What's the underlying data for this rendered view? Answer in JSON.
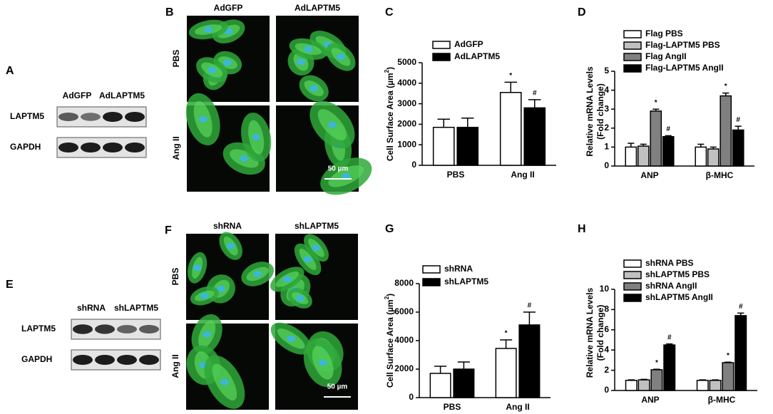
{
  "blot_a": {
    "letter": "A",
    "lanes": [
      "AdGFP",
      "AdLAPTM5"
    ],
    "rows": [
      "LAPTM5",
      "GAPDH"
    ]
  },
  "images_b": {
    "letter": "B",
    "columns": [
      "AdGFP",
      "AdLAPTM5"
    ],
    "rows": [
      "PBS",
      "Ang II"
    ],
    "scale_bar": "50 µm"
  },
  "blot_e": {
    "letter": "E",
    "lanes": [
      "shRNA",
      "shLAPTM5"
    ],
    "rows": [
      "LAPTM5",
      "GAPDH"
    ]
  },
  "images_f": {
    "letter": "F",
    "columns": [
      "shRNA",
      "shLAPTM5"
    ],
    "rows": [
      "PBS",
      "Ang II"
    ],
    "scale_bar": "50 µm"
  },
  "chart_data": [
    {
      "type": "bar",
      "letter": "C",
      "y_label": [
        "Cell Surface Area (µm",
        "2",
        ")"
      ],
      "y_label_style": "superscript",
      "categories": [
        "PBS",
        "Ang II"
      ],
      "legend": "top",
      "series": [
        {
          "name": "AdGFP",
          "color": "#ffffff",
          "values": [
            1850,
            3550
          ],
          "errors": [
            400,
            500
          ],
          "markers": [
            null,
            "*"
          ]
        },
        {
          "name": "AdLAPTM5",
          "color": "#000000",
          "values": [
            1850,
            2800
          ],
          "errors": [
            450,
            400
          ],
          "markers": [
            null,
            "#"
          ]
        }
      ],
      "ylim": [
        0,
        5000
      ],
      "yticks": [
        0,
        1000,
        2000,
        3000,
        4000,
        5000
      ]
    },
    {
      "type": "bar",
      "letter": "D",
      "y_label": [
        "Relative mRNA Levels",
        "(Fold change)"
      ],
      "y_label_style": "two-line",
      "categories": [
        "ANP",
        "β-MHC"
      ],
      "legend": "top",
      "series": [
        {
          "name": "Flag PBS",
          "color": "#ffffff",
          "values": [
            1.0,
            1.0
          ],
          "errors": [
            0.2,
            0.15
          ],
          "markers": [
            null,
            null
          ]
        },
        {
          "name": "Flag-LAPTM5 PBS",
          "color": "#c0c0c0",
          "values": [
            1.05,
            0.9
          ],
          "errors": [
            0.1,
            0.1
          ],
          "markers": [
            null,
            null
          ]
        },
        {
          "name": "Flag AngII",
          "color": "#808080",
          "values": [
            2.9,
            3.7
          ],
          "errors": [
            0.1,
            0.15
          ],
          "markers": [
            "*",
            "*"
          ]
        },
        {
          "name": "Flag-LAPTM5 AngII",
          "color": "#000000",
          "values": [
            1.55,
            1.9
          ],
          "errors": [
            0.05,
            0.2
          ],
          "markers": [
            "#",
            "#"
          ]
        }
      ],
      "ylim": [
        0,
        5
      ],
      "yticks": [
        0,
        1,
        2,
        3,
        4,
        5
      ]
    },
    {
      "type": "bar",
      "letter": "G",
      "y_label": [
        "Cell Surface Area (µm",
        "2",
        ")"
      ],
      "y_label_style": "superscript",
      "categories": [
        "PBS",
        "Ang II"
      ],
      "legend": "top",
      "series": [
        {
          "name": "shRNA",
          "color": "#ffffff",
          "values": [
            1700,
            3450
          ],
          "errors": [
            500,
            600
          ],
          "markers": [
            null,
            "*"
          ]
        },
        {
          "name": "shLAPTM5",
          "color": "#000000",
          "values": [
            2000,
            5100
          ],
          "errors": [
            500,
            900
          ],
          "markers": [
            null,
            "#"
          ]
        }
      ],
      "ylim": [
        0,
        8000
      ],
      "yticks": [
        0,
        2000,
        4000,
        6000,
        8000
      ]
    },
    {
      "type": "bar",
      "letter": "H",
      "y_label": [
        "Relative mRNA Levels",
        "(Fold change)"
      ],
      "y_label_style": "two-line",
      "categories": [
        "ANP",
        "β-MHC"
      ],
      "legend": "top",
      "series": [
        {
          "name": "shRNA PBS",
          "color": "#ffffff",
          "values": [
            1.0,
            1.0
          ],
          "errors": [
            0.05,
            0.05
          ],
          "markers": [
            null,
            null
          ]
        },
        {
          "name": "shLAPTM5 PBS",
          "color": "#c0c0c0",
          "values": [
            1.05,
            1.0
          ],
          "errors": [
            0.05,
            0.05
          ],
          "markers": [
            null,
            null
          ]
        },
        {
          "name": "shRNA AngII",
          "color": "#808080",
          "values": [
            2.05,
            2.75
          ],
          "errors": [
            0.05,
            0.05
          ],
          "markers": [
            "*",
            "*"
          ]
        },
        {
          "name": "shLAPTM5 AngII",
          "color": "#000000",
          "values": [
            4.5,
            7.4
          ],
          "errors": [
            0.1,
            0.25
          ],
          "markers": [
            "#",
            "#"
          ]
        }
      ],
      "ylim": [
        0,
        10
      ],
      "yticks": [
        0,
        2,
        4,
        6,
        8,
        10
      ]
    }
  ]
}
